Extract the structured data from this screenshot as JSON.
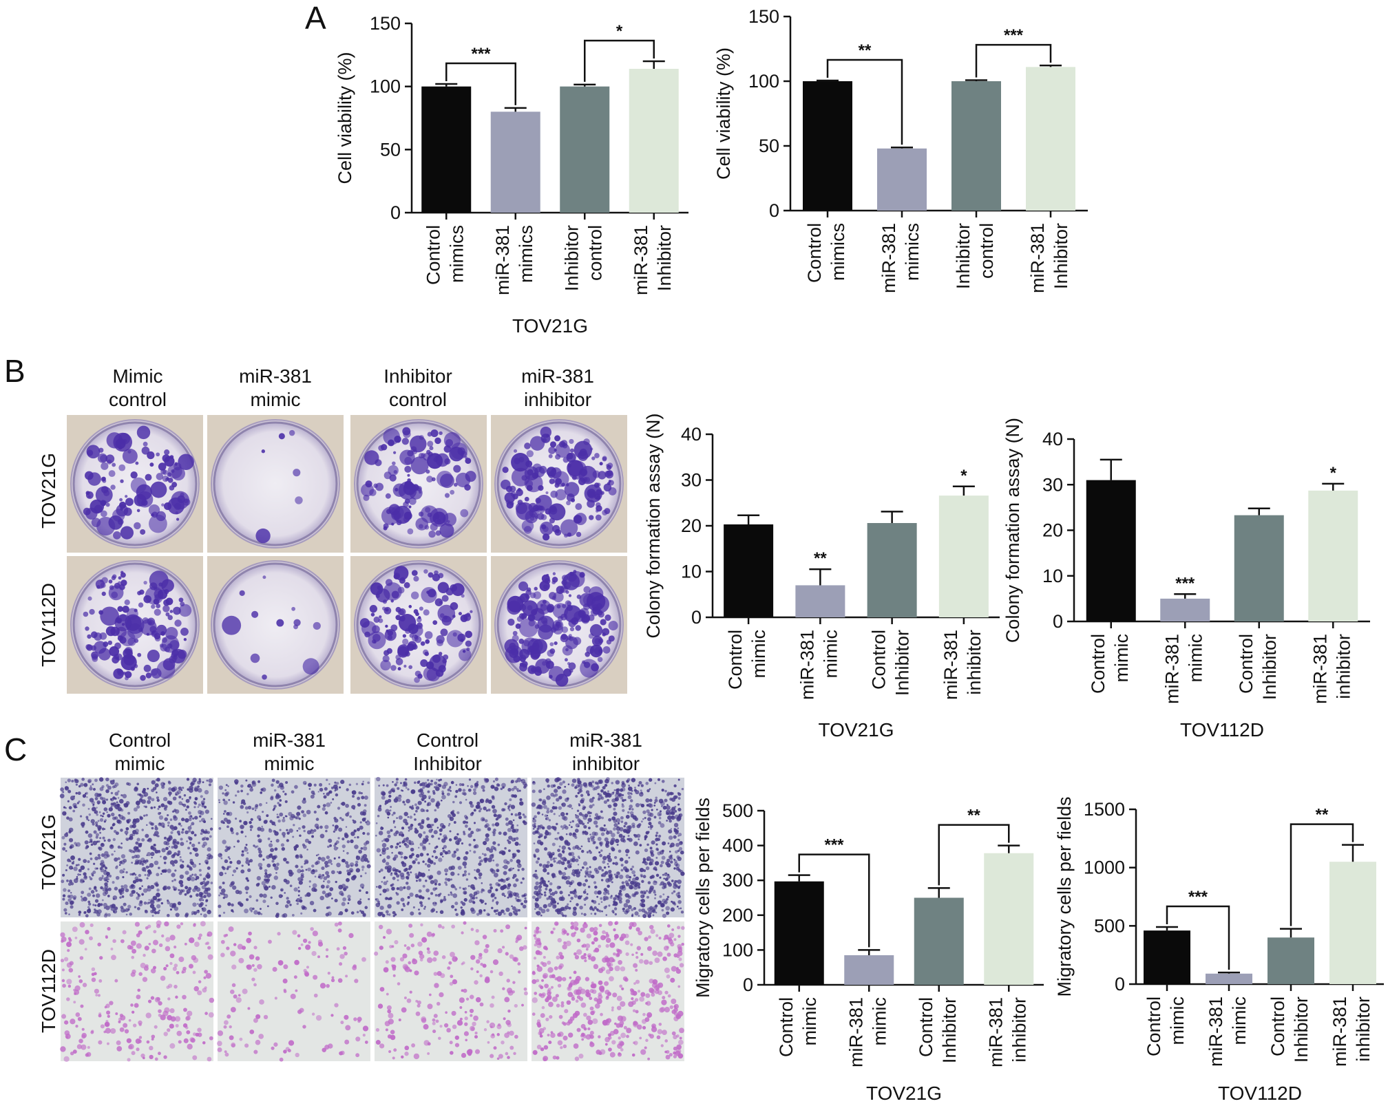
{
  "panel_labels": [
    "A",
    "B",
    "C"
  ],
  "colors": {
    "bars": [
      "#0a0a0a",
      "#9c9fb6",
      "#6f8282",
      "#dde8d9"
    ],
    "crystal_violet": "#4b2ea8",
    "transwell_dark": "#4a3c8c",
    "transwell_light": "#c06bc8"
  },
  "panel_b_images": {
    "columns": [
      "Mimic\ncontrol",
      "miR-381\nmimic",
      "Inhibitor\ncontrol",
      "miR-381\ninhibitor"
    ],
    "rows": [
      "TOV21G",
      "TOV112D"
    ],
    "icons": [
      "colony-plate-photo"
    ]
  },
  "panel_c_images": {
    "columns": [
      "Control\nmimic",
      "miR-381\nmimic",
      "Control\nInhibitor",
      "miR-381\ninhibitor"
    ],
    "rows": [
      "TOV21G",
      "TOV112D"
    ],
    "icons": [
      "transwell-micrograph"
    ]
  },
  "chart_data": [
    {
      "id": "a1",
      "type": "bar",
      "categories": [
        "Control\nmimics",
        "miR-381\nmimics",
        "Inhibitor\ncontrol",
        "miR-381\nInhibitor"
      ],
      "values": [
        100,
        80,
        100,
        114
      ],
      "errors": [
        2,
        3,
        1.5,
        6
      ],
      "ylim": [
        0,
        150
      ],
      "yticks": [
        0,
        50,
        100,
        150
      ],
      "ylabel": "Cell viability (%)",
      "xlabel": "TOV21G",
      "brackets": [
        {
          "from": 0,
          "to": 1,
          "label": "***"
        },
        {
          "from": 2,
          "to": 3,
          "label": "*"
        }
      ],
      "stars": []
    },
    {
      "id": "a2",
      "type": "bar",
      "categories": [
        "Control\nmimics",
        "miR-381\nmimics",
        "Inhibitor\ncontrol",
        "miR-381\nInhibitor"
      ],
      "values": [
        100,
        48,
        100,
        111
      ],
      "errors": [
        0.5,
        0.8,
        0.8,
        1.2
      ],
      "ylim": [
        0,
        150
      ],
      "yticks": [
        0,
        50,
        100,
        150
      ],
      "ylabel": "Cell viability (%)",
      "xlabel": "",
      "brackets": [
        {
          "from": 0,
          "to": 1,
          "label": "**"
        },
        {
          "from": 2,
          "to": 3,
          "label": "***"
        }
      ],
      "stars": []
    },
    {
      "id": "b1",
      "type": "bar",
      "categories": [
        "Control\nmimic",
        "miR-381\nmimic",
        "Control\nInhibitor",
        "miR-381\ninhibitor"
      ],
      "values": [
        20.3,
        7,
        20.6,
        26.6
      ],
      "errors": [
        2,
        3.5,
        2.5,
        2
      ],
      "ylim": [
        0,
        40
      ],
      "yticks": [
        0,
        10,
        20,
        30,
        40
      ],
      "ylabel": "Colony formation assay (N)",
      "xlabel": "TOV21G",
      "brackets": [],
      "stars": [
        {
          "index": 1,
          "label": "**"
        },
        {
          "index": 3,
          "label": "*"
        }
      ]
    },
    {
      "id": "b2",
      "type": "bar",
      "categories": [
        "Control\nmimic",
        "miR-381\nmimic",
        "Control\nInhibitor",
        "miR-381\ninhibitor"
      ],
      "values": [
        31,
        5,
        23.3,
        28.7
      ],
      "errors": [
        4.5,
        1,
        1.5,
        1.5
      ],
      "ylim": [
        0,
        40
      ],
      "yticks": [
        0,
        10,
        20,
        30,
        40
      ],
      "ylabel": "Colony formation assay (N)",
      "xlabel": "TOV112D",
      "brackets": [],
      "stars": [
        {
          "index": 1,
          "label": "***"
        },
        {
          "index": 3,
          "label": "*"
        }
      ]
    },
    {
      "id": "c1",
      "type": "bar",
      "categories": [
        "Control\nmimic",
        "miR-381\nmimic",
        "Control\nInhibitor",
        "miR-381\ninhibitor"
      ],
      "values": [
        297,
        85,
        250,
        378
      ],
      "errors": [
        18,
        15,
        28,
        22
      ],
      "ylim": [
        0,
        500
      ],
      "yticks": [
        0,
        100,
        200,
        300,
        400,
        500
      ],
      "ylabel": "Migratory cells per fields",
      "xlabel": "TOV21G",
      "brackets": [
        {
          "from": 0,
          "to": 1,
          "label": "***"
        },
        {
          "from": 2,
          "to": 3,
          "label": "**"
        }
      ],
      "stars": []
    },
    {
      "id": "c2",
      "type": "bar",
      "categories": [
        "Control\nmimic",
        "miR-381\nmimic",
        "Control\nInhibitor",
        "miR-381\ninhibitor"
      ],
      "values": [
        460,
        90,
        400,
        1050
      ],
      "errors": [
        30,
        10,
        75,
        145
      ],
      "ylim": [
        0,
        1500
      ],
      "yticks": [
        0,
        500,
        1000,
        1500
      ],
      "ylabel": "Migratory cells per fields",
      "xlabel": "TOV112D",
      "brackets": [
        {
          "from": 0,
          "to": 1,
          "label": "***"
        },
        {
          "from": 2,
          "to": 3,
          "label": "**"
        }
      ],
      "stars": []
    }
  ]
}
